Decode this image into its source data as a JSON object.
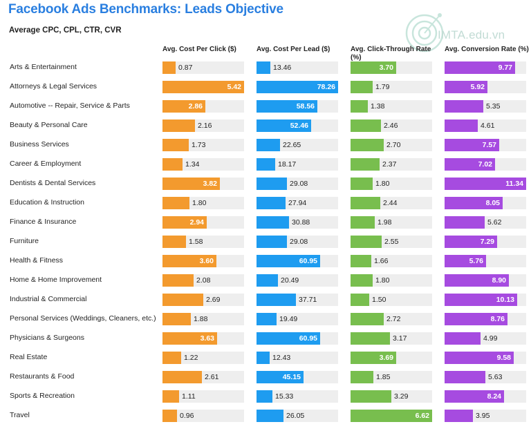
{
  "title": "Facebook Ads Benchmarks: Leads Objective",
  "subtitle": "Average CPC, CPL, CTR, CVR",
  "watermark": "IMTA.edu.vn",
  "chart_data": {
    "type": "bar",
    "orientation": "horizontal",
    "categories": [
      "Arts & Entertainment",
      "Attorneys & Legal Services",
      "Automotive -- Repair, Service & Parts",
      "Beauty & Personal Care",
      "Business Services",
      "Career & Employment",
      "Dentists & Dental Services",
      "Education & Instruction",
      "Finance & Insurance",
      "Furniture",
      "Health & Fitness",
      "Home & Home Improvement",
      "Industrial & Commercial",
      "Personal Services (Weddings, Cleaners, etc.)",
      "Physicians & Surgeons",
      "Real Estate",
      "Restaurants & Food",
      "Sports & Recreation",
      "Travel"
    ],
    "series": [
      {
        "name": "Avg. Cost Per Click ($)",
        "color": "#f39a2e",
        "max": 5.42,
        "values": [
          0.87,
          5.42,
          2.86,
          2.16,
          1.73,
          1.34,
          3.82,
          1.8,
          2.94,
          1.58,
          3.6,
          2.08,
          2.69,
          1.88,
          3.63,
          1.22,
          2.61,
          1.11,
          0.96
        ]
      },
      {
        "name": "Avg. Cost Per Lead ($)",
        "color": "#1e9cf0",
        "max": 78.26,
        "values": [
          13.46,
          78.26,
          58.56,
          52.46,
          22.65,
          18.17,
          29.08,
          27.94,
          30.88,
          29.08,
          60.95,
          20.49,
          37.71,
          19.49,
          60.95,
          12.43,
          45.15,
          15.33,
          26.05
        ]
      },
      {
        "name": "Avg. Click-Through Rate (%)",
        "color": "#78be4e",
        "max": 6.62,
        "values": [
          3.7,
          1.79,
          1.38,
          2.46,
          2.7,
          2.37,
          1.8,
          2.44,
          1.98,
          2.55,
          1.66,
          1.8,
          1.5,
          2.72,
          3.17,
          3.69,
          1.85,
          3.29,
          6.62
        ]
      },
      {
        "name": "Avg. Conversion Rate (%)",
        "color": "#a64be0",
        "max": 11.34,
        "values": [
          9.77,
          5.92,
          5.35,
          4.61,
          7.57,
          7.02,
          11.34,
          8.05,
          5.62,
          7.29,
          5.76,
          8.9,
          10.13,
          8.76,
          4.99,
          9.58,
          5.63,
          8.24,
          3.95
        ]
      }
    ],
    "value_format": "2 decimals"
  }
}
